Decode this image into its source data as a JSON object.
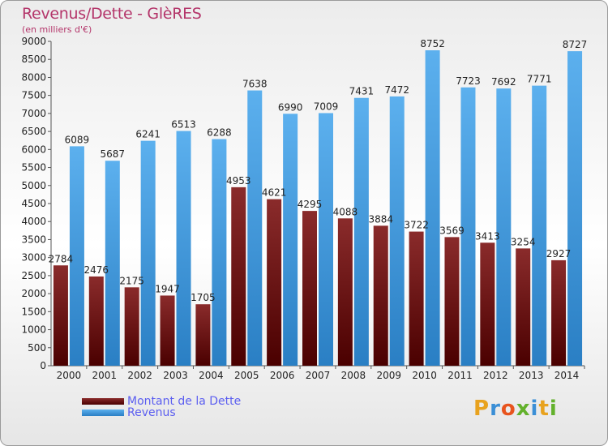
{
  "title": "Revenus/Dette - GlèRES",
  "subtitle": "(en milliers d'€)",
  "logo": {
    "text": "Proxiti"
  },
  "colors": {
    "dette": "#7a1c1c",
    "revenus": "#3d98dd",
    "title": "#b4356a",
    "legend_text": "#5b5ef0"
  },
  "legend": [
    {
      "label": "Montant de la Dette"
    },
    {
      "label": "Revenus"
    }
  ],
  "chart_data": {
    "type": "bar",
    "title": "Revenus/Dette - GlèRES",
    "ylabel": "(en milliers d'€)",
    "ylim": [
      0,
      9000
    ],
    "ytick_step": 500,
    "grid": false,
    "legend_position": "bottom-left",
    "categories": [
      "2000",
      "2001",
      "2002",
      "2003",
      "2004",
      "2005",
      "2006",
      "2007",
      "2008",
      "2009",
      "2010",
      "2011",
      "2012",
      "2013",
      "2014"
    ],
    "series": [
      {
        "name": "Montant de la Dette",
        "values": [
          2784,
          2476,
          2175,
          1947,
          1705,
          4953,
          4621,
          4295,
          4088,
          3884,
          3722,
          3569,
          3413,
          3254,
          2927
        ],
        "labels": [
          "2784",
          "2476",
          "2175",
          "1947",
          "1705",
          "4953",
          "4621",
          "4295",
          "4088",
          "3884",
          "3722",
          "3569",
          "3413",
          "3254",
          "2927"
        ]
      },
      {
        "name": "Revenus",
        "values": [
          6089,
          5687,
          6241,
          6513,
          6288,
          7638,
          6990,
          7009,
          7431,
          7472,
          8752,
          7723,
          7692,
          7771,
          8727
        ],
        "labels": [
          "6089",
          "5687",
          "6241",
          "6513",
          "6288",
          "7638",
          "6990",
          "7009",
          "7431",
          "7472",
          "8752",
          "7723",
          "7692",
          "7771",
          "8727"
        ]
      }
    ]
  }
}
